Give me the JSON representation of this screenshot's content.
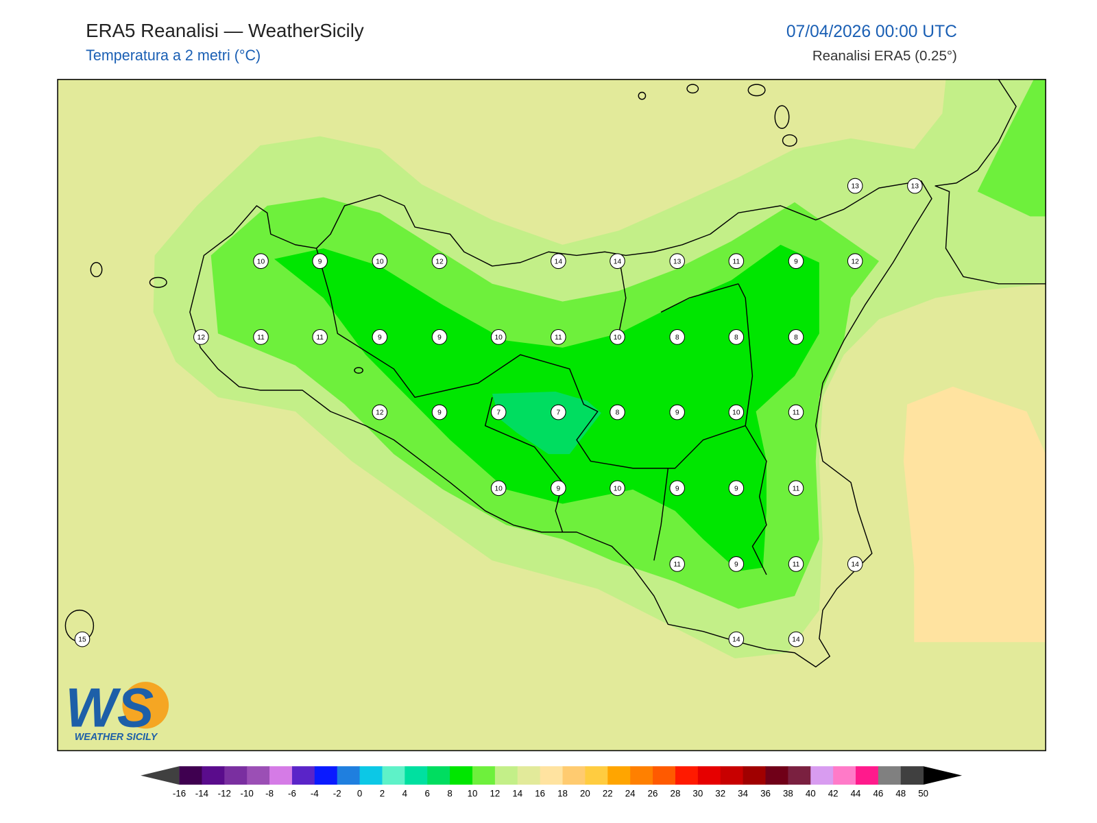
{
  "header": {
    "title": "ERA5 Reanalisi — WeatherSicily",
    "subtitle": "Temperatura a 2 metri (°C)",
    "datetime": "07/04/2026 00:00 UTC",
    "source": "Reanalisi ERA5 (0.25°)"
  },
  "logo": {
    "mark": "WS",
    "name": "WEATHER SICILY"
  },
  "stations": [
    13,
    13,
    10,
    9,
    10,
    12,
    14,
    14,
    13,
    11,
    9,
    12,
    12,
    11,
    11,
    9,
    9,
    10,
    11,
    10,
    8,
    8,
    8,
    12,
    9,
    7,
    7,
    8,
    9,
    10,
    11,
    10,
    9,
    10,
    9,
    9,
    11,
    11,
    9,
    11,
    14,
    15,
    14,
    14
  ],
  "colorbar": {
    "ticks": [
      -16,
      -14,
      -12,
      -10,
      -8,
      -6,
      -4,
      -2,
      0,
      2,
      4,
      6,
      8,
      10,
      12,
      14,
      16,
      18,
      20,
      22,
      24,
      26,
      28,
      30,
      32,
      34,
      36,
      38,
      40,
      42,
      44,
      46,
      48,
      50
    ],
    "colors": [
      "#3f0050",
      "#5a0c8c",
      "#7a2fa0",
      "#9b4fb5",
      "#d57be6",
      "#5a24c8",
      "#0a1aff",
      "#1f7fdf",
      "#0cc8e6",
      "#5ef2c8",
      "#00e0a0",
      "#00dd60",
      "#00e600",
      "#6ef03c",
      "#c3ef88",
      "#e2ea9a",
      "#ffe3a0",
      "#ffcb70",
      "#ffcc40",
      "#ffa500",
      "#ff8000",
      "#ff5a00",
      "#ff1a00",
      "#e60000",
      "#c80000",
      "#a00000",
      "#700018",
      "#7a2040",
      "#d89cf0",
      "#ff7ac8",
      "#ff1a8c",
      "#808080",
      "#404040"
    ],
    "under_color": "#404040",
    "over_color": "#000000"
  }
}
